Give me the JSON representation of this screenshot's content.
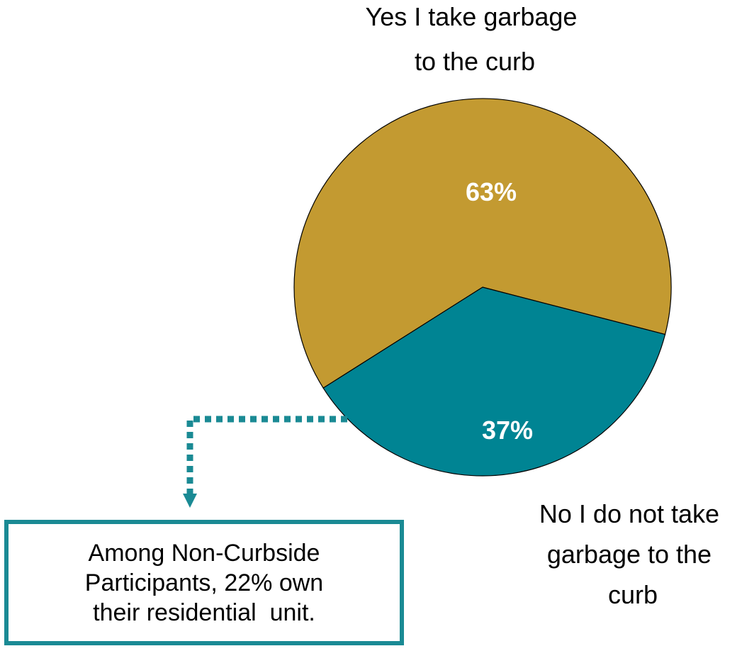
{
  "chart_data": {
    "type": "pie",
    "slices": [
      {
        "label_lines": [
          "Yes I take garbage",
          "to the curb"
        ],
        "value": 63,
        "value_label": "63%",
        "color": "#c39a31"
      },
      {
        "label_lines": [
          "No I do not take",
          "garbage to the",
          "curb"
        ],
        "value": 37,
        "value_label": "37%",
        "color": "#008493"
      }
    ]
  },
  "callout": {
    "lines": [
      "Among Non-Curbside",
      "Participants, 22% own",
      "their residential  unit."
    ],
    "border_color": "#1a8a94",
    "connector_color": "#1a8a94"
  }
}
